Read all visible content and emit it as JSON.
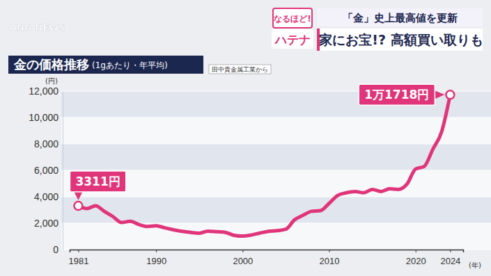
{
  "header": {
    "logo": "ANN NEWS",
    "corner_top": "なるほど!",
    "corner_bottom": "ハテナ",
    "headline": "「金」史上最高値を更新",
    "subheadline": "家にお宝!? 高額買い取りも"
  },
  "chart_data": {
    "type": "line",
    "title": "金の価格推移",
    "subtitle": "(1gあたり・年平均)",
    "source": "田中貴金属工業から",
    "y_label": "(円)",
    "x_label": "(年)",
    "x": [
      1981,
      1982,
      1983,
      1984,
      1985,
      1986,
      1987,
      1988,
      1989,
      1990,
      1991,
      1992,
      1993,
      1994,
      1995,
      1996,
      1997,
      1998,
      1999,
      2000,
      2001,
      2002,
      2003,
      2004,
      2005,
      2006,
      2007,
      2008,
      2009,
      2010,
      2011,
      2012,
      2013,
      2014,
      2015,
      2016,
      2017,
      2018,
      2019,
      2020,
      2021,
      2022,
      2023,
      2024
    ],
    "values": [
      3311,
      3100,
      3320,
      2900,
      2500,
      2050,
      2150,
      1900,
      1750,
      1800,
      1650,
      1500,
      1380,
      1300,
      1240,
      1400,
      1350,
      1300,
      1080,
      1020,
      1100,
      1250,
      1380,
      1430,
      1540,
      2250,
      2600,
      2900,
      2950,
      3500,
      4100,
      4300,
      4400,
      4300,
      4550,
      4400,
      4600,
      4550,
      4950,
      6100,
      6300,
      7600,
      8900,
      11718
    ],
    "color": "#e0357a",
    "xlim": [
      1980,
      2025.5
    ],
    "xticks": [
      1981,
      1990,
      2000,
      2010,
      2020,
      2024
    ],
    "ylim": [
      0,
      12000
    ],
    "yticks": [
      0,
      {
        "value": 2000,
        "label": "2,000"
      },
      {
        "value": 4000,
        "label": "4,000"
      },
      {
        "value": 6000,
        "label": "6,000"
      },
      {
        "value": 8000,
        "label": "8,000"
      },
      {
        "value": 10000,
        "label": "10,000"
      },
      {
        "value": 12000,
        "label": "12,000"
      }
    ],
    "grid": true,
    "annotations": [
      {
        "text": "3311円",
        "x": 1981,
        "y": 3311
      },
      {
        "text": "1万1718円",
        "x": 2024,
        "y": 11718
      }
    ]
  }
}
